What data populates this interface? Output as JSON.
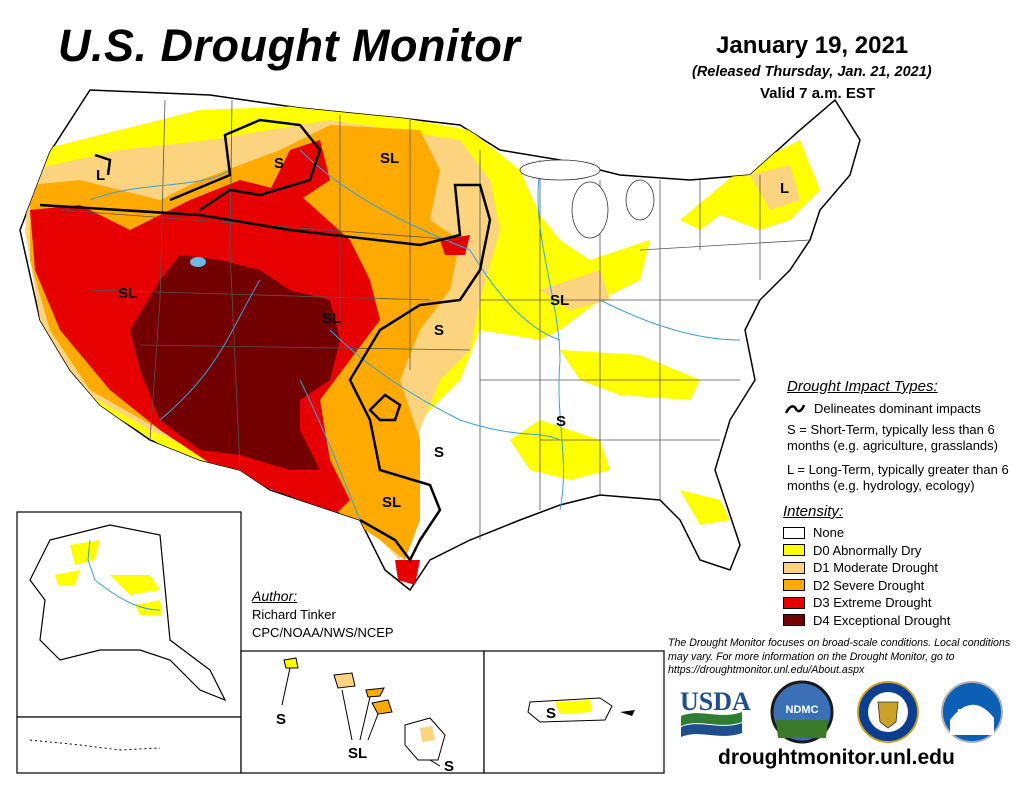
{
  "header": {
    "title": "U.S. Drought Monitor",
    "date": "January 19, 2021",
    "released": "(Released Thursday, Jan. 21, 2021)",
    "valid": "Valid 7 a.m. EST"
  },
  "impact_types": {
    "heading": "Drought Impact Types:",
    "line_label": "Delineates dominant impacts",
    "s_text": "S = Short-Term, typically less than 6 months (e.g. agriculture, grasslands)",
    "l_text": "L = Long-Term, typically greater than 6 months (e.g. hydrology, ecology)"
  },
  "intensity": {
    "heading": "Intensity:",
    "levels": [
      {
        "label": "None",
        "color": "#ffffff"
      },
      {
        "label": "D0 Abnormally Dry",
        "color": "#ffff00"
      },
      {
        "label": "D1 Moderate Drought",
        "color": "#fcd37f"
      },
      {
        "label": "D2 Severe Drought",
        "color": "#ffaa00"
      },
      {
        "label": "D3 Extreme Drought",
        "color": "#e60000"
      },
      {
        "label": "D4 Exceptional Drought",
        "color": "#730000"
      }
    ]
  },
  "author": {
    "heading": "Author:",
    "name": "Richard Tinker",
    "org": "CPC/NOAA/NWS/NCEP"
  },
  "disclaimer": "The Drought Monitor focuses on broad-scale conditions. Local conditions may vary. For more information on the Drought Monitor, go to https://droughtmonitor.unl.edu/About.aspx",
  "logos": {
    "usda": "USDA",
    "ndmc": "NDMC",
    "noaa": "NOAA"
  },
  "website": "droughtmonitor.unl.edu",
  "map_labels": {
    "sl_west": "SL",
    "sl_north": "SL",
    "sl_rockies": "SL",
    "sl_midwest": "SL",
    "sl_texas": "SL",
    "l_northwest": "L",
    "l_northeast": "L",
    "s_montana": "S",
    "s_plains": "S",
    "s_texas": "S",
    "s_south": "S",
    "s_hawaii": "S",
    "sl_hawaii": "SL",
    "s_hawaii_big": "S",
    "s_puerto_rico": "S"
  }
}
